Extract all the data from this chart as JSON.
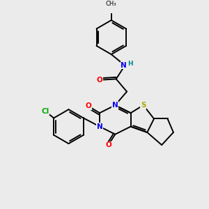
{
  "bg_color": "#ebebeb",
  "atom_colors": {
    "C": "#000000",
    "N": "#0000ee",
    "O": "#ff0000",
    "S": "#aaaa00",
    "Cl": "#00aa00",
    "H": "#008888"
  },
  "bond_color": "#000000",
  "bond_width": 1.4
}
